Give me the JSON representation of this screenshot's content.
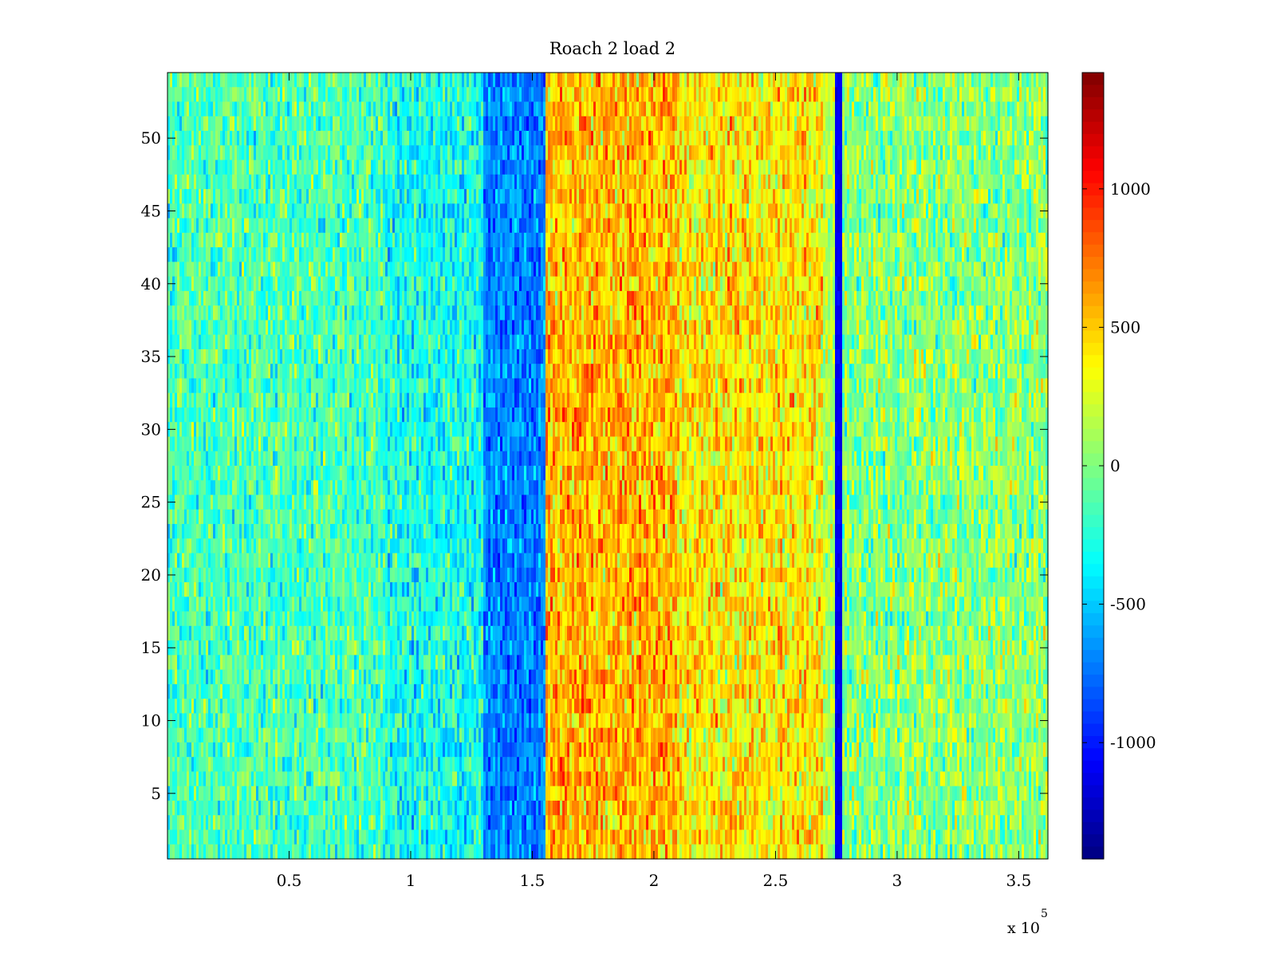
{
  "chart_data": {
    "type": "heatmap",
    "title": "Roach 2 load 2",
    "xlabel": "",
    "ylabel": "",
    "xlim": [
      0,
      362000
    ],
    "ylim": [
      0.5,
      54.5
    ],
    "x_scale_label": "x 10",
    "x_scale_exponent": "5",
    "xticks": [
      {
        "value": 50000,
        "label": "0.5"
      },
      {
        "value": 100000,
        "label": "1"
      },
      {
        "value": 150000,
        "label": "1.5"
      },
      {
        "value": 200000,
        "label": "2"
      },
      {
        "value": 250000,
        "label": "2.5"
      },
      {
        "value": 300000,
        "label": "3"
      },
      {
        "value": 350000,
        "label": "3.5"
      }
    ],
    "yticks": [
      {
        "value": 5,
        "label": "5"
      },
      {
        "value": 10,
        "label": "10"
      },
      {
        "value": 15,
        "label": "15"
      },
      {
        "value": 20,
        "label": "20"
      },
      {
        "value": 25,
        "label": "25"
      },
      {
        "value": 30,
        "label": "30"
      },
      {
        "value": 35,
        "label": "35"
      },
      {
        "value": 40,
        "label": "40"
      },
      {
        "value": 45,
        "label": "45"
      },
      {
        "value": 50,
        "label": "50"
      }
    ],
    "rows": 54,
    "colormap": "jet",
    "clim": [
      -1420,
      1420
    ],
    "colorbar_ticks": [
      {
        "value": 1000,
        "label": "1000"
      },
      {
        "value": 500,
        "label": "500"
      },
      {
        "value": 0,
        "label": "0"
      },
      {
        "value": -500,
        "label": "-500"
      },
      {
        "value": -1000,
        "label": "-1000"
      }
    ],
    "regions": [
      {
        "x_start": 0,
        "x_end": 90000,
        "mean": -150,
        "spread": 180
      },
      {
        "x_start": 90000,
        "x_end": 130000,
        "mean": -300,
        "spread": 180
      },
      {
        "x_start": 130000,
        "x_end": 155000,
        "mean": -700,
        "spread": 150
      },
      {
        "x_start": 155000,
        "x_end": 210000,
        "mean": 550,
        "spread": 200
      },
      {
        "x_start": 210000,
        "x_end": 270000,
        "mean": 400,
        "spread": 200
      },
      {
        "x_start": 270000,
        "x_end": 274000,
        "mean": 150,
        "spread": 150
      },
      {
        "x_start": 274000,
        "x_end": 277000,
        "mean": -1100,
        "spread": 40
      },
      {
        "x_start": 277000,
        "x_end": 362000,
        "mean": 20,
        "spread": 200
      }
    ]
  }
}
